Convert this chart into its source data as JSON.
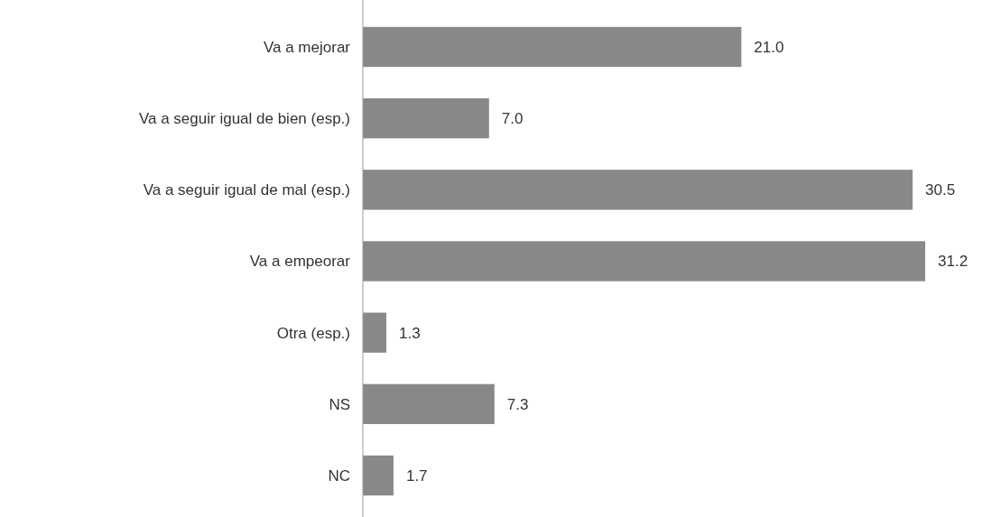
{
  "chart_data": {
    "type": "bar",
    "orientation": "horizontal",
    "categories": [
      "Va a mejorar",
      "Va a seguir igual de bien (esp.)",
      "Va a seguir igual de mal (esp.)",
      "Va a empeorar",
      "Otra (esp.)",
      "NS",
      "NC"
    ],
    "values": [
      21.0,
      7.0,
      30.5,
      31.2,
      1.3,
      7.3,
      1.7
    ],
    "value_labels": [
      "21.0",
      "7.0",
      "30.5",
      "31.2",
      "1.3",
      "7.3",
      "1.7"
    ],
    "color": "#888888"
  }
}
